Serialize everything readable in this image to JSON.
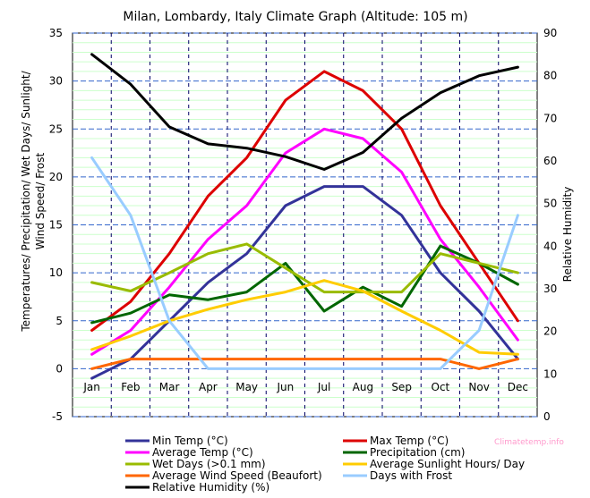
{
  "chart_data": {
    "type": "line",
    "title": "Milan, Lombardy, Italy Climate Graph (Altitude: 105 m)",
    "ylabel_left": [
      "Temperatures/ Precipitation/ Wet Days/ Sunlight/",
      "Wind Speed/ Frost"
    ],
    "ylabel_right": "Relative Humidity",
    "ylim_left": [
      -5,
      35
    ],
    "ylim_right": [
      0,
      90
    ],
    "left_ticks": [
      "35",
      "30",
      "25",
      "20",
      "15",
      "10",
      "5",
      "0",
      "-5"
    ],
    "right_ticks": [
      "90",
      "80",
      "70",
      "60",
      "50",
      "40",
      "30",
      "20",
      "10",
      "0"
    ],
    "categories": [
      "Jan",
      "Feb",
      "Mar",
      "Apr",
      "May",
      "Jun",
      "Jul",
      "Aug",
      "Sep",
      "Oct",
      "Nov",
      "Dec"
    ],
    "series": [
      {
        "name": "Min Temp (°C)",
        "color": "#333399",
        "axis": "left",
        "values": [
          -1,
          1,
          5,
          9,
          12,
          17,
          19,
          19,
          16,
          10,
          6,
          1
        ]
      },
      {
        "name": "Max Temp (°C)",
        "color": "#dd0000",
        "axis": "left",
        "values": [
          4,
          7,
          12,
          18,
          22,
          28,
          31,
          29,
          25,
          17,
          11,
          5
        ]
      },
      {
        "name": "Average Temp (°C)",
        "color": "#ff00ff",
        "axis": "left",
        "values": [
          1.5,
          4,
          8.5,
          13.5,
          17,
          22.5,
          25,
          24,
          20.5,
          13.5,
          8.5,
          3
        ]
      },
      {
        "name": "Precipitation (cm)",
        "color": "#006600",
        "axis": "left",
        "values": [
          4.8,
          5.8,
          7.7,
          7.2,
          8,
          11,
          6,
          8.5,
          6.5,
          12.8,
          11,
          8.8
        ]
      },
      {
        "name": "Wet Days (>0.1 mm)",
        "color": "#99bb00",
        "axis": "left",
        "values": [
          9,
          8.1,
          10,
          12,
          13,
          10.5,
          8,
          8,
          8,
          12,
          11,
          10
        ]
      },
      {
        "name": "Average Sunlight Hours/ Day",
        "color": "#ffcc00",
        "axis": "left",
        "values": [
          2,
          3.4,
          5,
          6.2,
          7.2,
          8,
          9.2,
          8.1,
          6,
          4,
          1.7,
          1.5
        ]
      },
      {
        "name": "Average Wind Speed (Beaufort)",
        "color": "#ff6600",
        "axis": "left",
        "values": [
          0,
          1,
          1,
          1,
          1,
          1,
          1,
          1,
          1,
          1,
          0,
          1
        ]
      },
      {
        "name": "Days with Frost",
        "color": "#99ccff",
        "axis": "left",
        "values": [
          22,
          16,
          5,
          0,
          0,
          0,
          0,
          0,
          0,
          0,
          4,
          16
        ]
      },
      {
        "name": "Relative Humidity (%)",
        "color": "#000000",
        "axis": "right",
        "values": [
          85,
          78,
          68,
          64,
          63,
          61,
          58,
          62,
          70,
          76,
          80,
          82
        ]
      }
    ],
    "legend_position": "bottom",
    "watermark": "Climatetemp.info"
  }
}
